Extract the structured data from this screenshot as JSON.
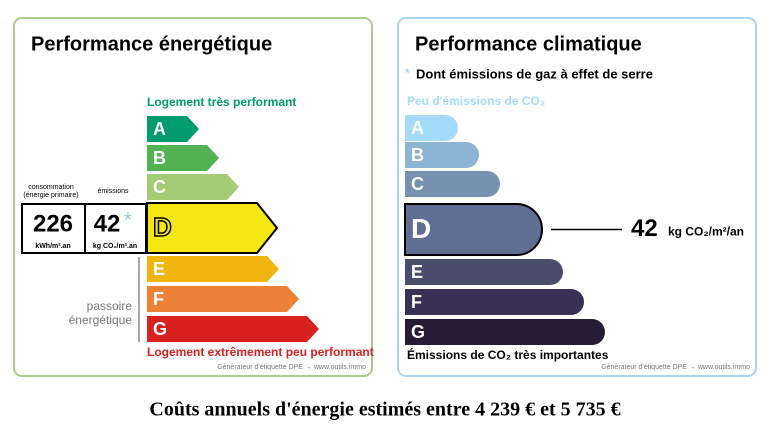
{
  "energy": {
    "title": "Performance énergétique",
    "top_label": "Logement très performant",
    "bottom_label": "Logement extrêmement peu performant",
    "classes": [
      {
        "letter": "A",
        "color": "#009c6d"
      },
      {
        "letter": "B",
        "color": "#52b153"
      },
      {
        "letter": "C",
        "color": "#a5cc74"
      },
      {
        "letter": "D",
        "color": "#f4e70f",
        "selected": true
      },
      {
        "letter": "E",
        "color": "#f0b50f"
      },
      {
        "letter": "F",
        "color": "#eb8235"
      },
      {
        "letter": "G",
        "color": "#d7221f"
      }
    ],
    "consumption": {
      "label": "consommation",
      "sublabel": "(énergie primaire)",
      "value": 226,
      "unit": "kWh/m².an"
    },
    "emissions": {
      "label": "émissions",
      "value": 42,
      "asterisk": "*",
      "unit": "kg CO₂/m².an"
    },
    "passoire": [
      "passoire",
      "énergétique"
    ],
    "footer": "Générateur d'étiquette DPE → www.outils.immo"
  },
  "climate": {
    "title": "Performance climatique",
    "note_asterisk": "*",
    "note": "Dont émissions de gaz à effet de serre",
    "top_label": "Peu d'émissions de CO₂",
    "bottom_label": "Émissions de CO₂ très importantes",
    "classes": [
      {
        "letter": "A",
        "color": "#a4dbf8"
      },
      {
        "letter": "B",
        "color": "#8cb4d3"
      },
      {
        "letter": "C",
        "color": "#7792b1"
      },
      {
        "letter": "D",
        "color": "#5f6e92",
        "selected": true
      },
      {
        "letter": "E",
        "color": "#4b4d6d"
      },
      {
        "letter": "F",
        "color": "#383154"
      },
      {
        "letter": "G",
        "color": "#281b35"
      }
    ],
    "value": 42,
    "unit": "kg CO₂/m²/an",
    "footer": "Générateur d'étiquette DPE → www.outils.immo"
  },
  "costs": "Coûts annuels d'énergie estimés entre 4 239 € et 5 735 €"
}
